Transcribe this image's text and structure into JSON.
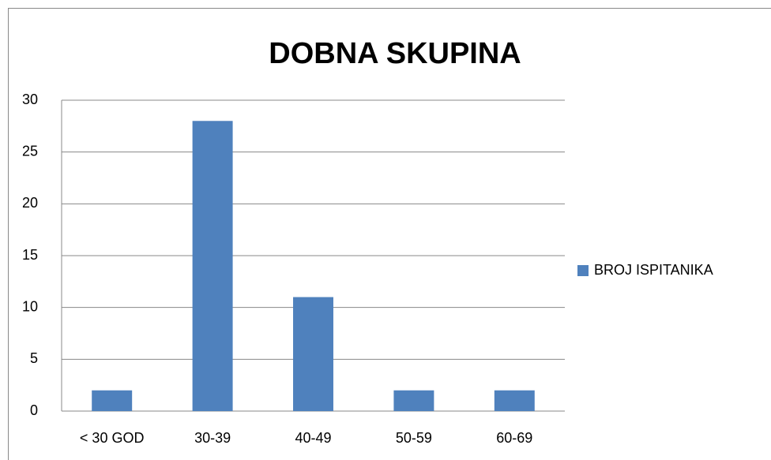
{
  "chart_data": {
    "type": "bar",
    "title": "DOBNA SKUPINA",
    "categories": [
      "< 30 GOD",
      "30-39",
      "40-49",
      "50-59",
      "60-69"
    ],
    "series": [
      {
        "name": "BROJ ISPITANIKA",
        "color": "#4f81bd",
        "values": [
          2,
          28,
          11,
          2,
          2
        ]
      }
    ],
    "ylim": [
      0,
      30
    ],
    "yticks": [
      0,
      5,
      10,
      15,
      20,
      25,
      30
    ],
    "grid": true,
    "legend": "right"
  }
}
